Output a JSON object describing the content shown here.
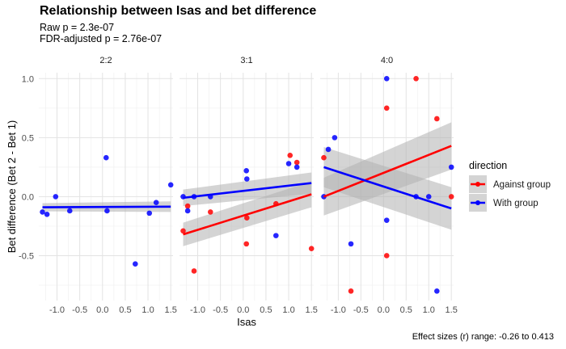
{
  "chart_data": {
    "type": "scatter",
    "title": "Relationship between Isas and bet difference",
    "subtitle_lines": [
      "Raw p = 2.3e-07",
      "FDR-adjusted p = 2.76e-07"
    ],
    "caption": "Effect sizes (r) range: -0.26 to 0.413",
    "xlabel": "Isas",
    "ylabel": "Bet difference (Bet 2 - Bet 1)",
    "xlim": [
      -1.4,
      1.55
    ],
    "ylim": [
      -0.88,
      1.05
    ],
    "x_ticks": [
      -1.0,
      -0.5,
      0.0,
      0.5,
      1.0,
      1.5
    ],
    "x_tick_labels": [
      "-1.0",
      "-0.5",
      "0.0",
      "0.5",
      "1.0",
      "1.5"
    ],
    "y_ticks": [
      -0.5,
      0.0,
      0.5,
      1.0
    ],
    "y_tick_labels": [
      "-0.5",
      "0.0",
      "0.5",
      "1.0"
    ],
    "grid": true,
    "legend": {
      "title": "direction",
      "position": "right",
      "entries": [
        {
          "label": "Against group",
          "color": "#ff0000"
        },
        {
          "label": "With group",
          "color": "#0000ff"
        }
      ]
    },
    "colors": {
      "Against group": "#ff0000",
      "With group": "#0000ff",
      "ribbon": "#b0b0b0",
      "overlap": "#7a1aa6"
    },
    "facets": [
      {
        "label": "2:2",
        "points": [
          {
            "x": -1.32,
            "y": -0.13,
            "group": "With group"
          },
          {
            "x": -1.22,
            "y": -0.15,
            "group": "With group"
          },
          {
            "x": -1.03,
            "y": 0.0,
            "group": "With group"
          },
          {
            "x": -0.72,
            "y": -0.12,
            "group": "With group"
          },
          {
            "x": 0.08,
            "y": 0.33,
            "group": "With group"
          },
          {
            "x": 0.1,
            "y": -0.12,
            "group": "With group"
          },
          {
            "x": 0.72,
            "y": -0.57,
            "group": "With group"
          },
          {
            "x": 1.03,
            "y": -0.14,
            "group": "With group"
          },
          {
            "x": 1.18,
            "y": -0.05,
            "group": "With group"
          },
          {
            "x": 1.5,
            "y": 0.1,
            "group": "With group"
          }
        ],
        "fits": [
          {
            "group": "With group",
            "x": [
              -1.32,
              1.5
            ],
            "y": [
              -0.09,
              -0.085
            ],
            "se": [
              0.035,
              0.045
            ]
          }
        ]
      },
      {
        "label": "3:1",
        "points": [
          {
            "x": -1.32,
            "y": -0.29,
            "group": "Against group"
          },
          {
            "x": -1.22,
            "y": -0.08,
            "group": "Against group"
          },
          {
            "x": -1.08,
            "y": -0.63,
            "group": "Against group"
          },
          {
            "x": -0.72,
            "y": -0.13,
            "group": "Against group"
          },
          {
            "x": 0.07,
            "y": -0.4,
            "group": "Against group"
          },
          {
            "x": 0.08,
            "y": -0.18,
            "group": "Against group"
          },
          {
            "x": 0.72,
            "y": -0.06,
            "group": "Against group"
          },
          {
            "x": 1.03,
            "y": 0.35,
            "group": "Against group"
          },
          {
            "x": 1.18,
            "y": 0.29,
            "group": "Against group"
          },
          {
            "x": 1.5,
            "y": -0.44,
            "group": "Against group"
          },
          {
            "x": -1.32,
            "y": 0.0,
            "group": "With group"
          },
          {
            "x": -1.22,
            "y": -0.12,
            "group": "With group"
          },
          {
            "x": -1.08,
            "y": 0.0,
            "group": "With group"
          },
          {
            "x": -0.72,
            "y": 0.0,
            "group": "With group"
          },
          {
            "x": 0.07,
            "y": 0.22,
            "group": "With group"
          },
          {
            "x": 0.08,
            "y": 0.15,
            "group": "With group"
          },
          {
            "x": 0.72,
            "y": -0.33,
            "group": "With group"
          },
          {
            "x": 1.0,
            "y": 0.28,
            "group": "With group"
          },
          {
            "x": 1.18,
            "y": 0.25,
            "group": "With group"
          }
        ],
        "fits": [
          {
            "group": "Against group",
            "x": [
              -1.32,
              1.5
            ],
            "y": [
              -0.32,
              0.02
            ],
            "se": [
              0.1,
              0.11
            ]
          },
          {
            "group": "With group",
            "x": [
              -1.32,
              1.5
            ],
            "y": [
              -0.01,
              0.115
            ],
            "se": [
              0.07,
              0.09
            ]
          }
        ]
      },
      {
        "label": "4:0",
        "points": [
          {
            "x": -1.32,
            "y": 0.33,
            "group": "Against group"
          },
          {
            "x": -0.72,
            "y": -0.8,
            "group": "Against group"
          },
          {
            "x": 0.07,
            "y": 0.75,
            "group": "Against group"
          },
          {
            "x": 0.07,
            "y": -0.5,
            "group": "Against group"
          },
          {
            "x": 0.72,
            "y": 1.0,
            "group": "Against group"
          },
          {
            "x": 1.18,
            "y": 0.66,
            "group": "Against group"
          },
          {
            "x": 1.5,
            "y": 0.0,
            "group": "Against group"
          },
          {
            "x": -1.32,
            "y": 0.0,
            "group": "With group"
          },
          {
            "x": -1.22,
            "y": 0.4,
            "group": "With group"
          },
          {
            "x": -1.08,
            "y": 0.5,
            "group": "With group"
          },
          {
            "x": -0.72,
            "y": -0.4,
            "group": "With group"
          },
          {
            "x": 0.07,
            "y": 1.0,
            "group": "With group"
          },
          {
            "x": 0.07,
            "y": -0.2,
            "group": "With group"
          },
          {
            "x": 0.72,
            "y": 0.0,
            "group": "With group"
          },
          {
            "x": 1.0,
            "y": 0.0,
            "group": "With group"
          },
          {
            "x": 1.18,
            "y": -0.8,
            "group": "With group"
          },
          {
            "x": 1.5,
            "y": 0.25,
            "group": "With group"
          }
        ],
        "fits": [
          {
            "group": "Against group",
            "x": [
              -1.32,
              1.5
            ],
            "y": [
              0.0,
              0.43
            ],
            "se": [
              0.16,
              0.2
            ]
          },
          {
            "group": "With group",
            "x": [
              -1.32,
              1.5
            ],
            "y": [
              0.25,
              -0.1
            ],
            "se": [
              0.17,
              0.18
            ]
          }
        ]
      }
    ]
  }
}
